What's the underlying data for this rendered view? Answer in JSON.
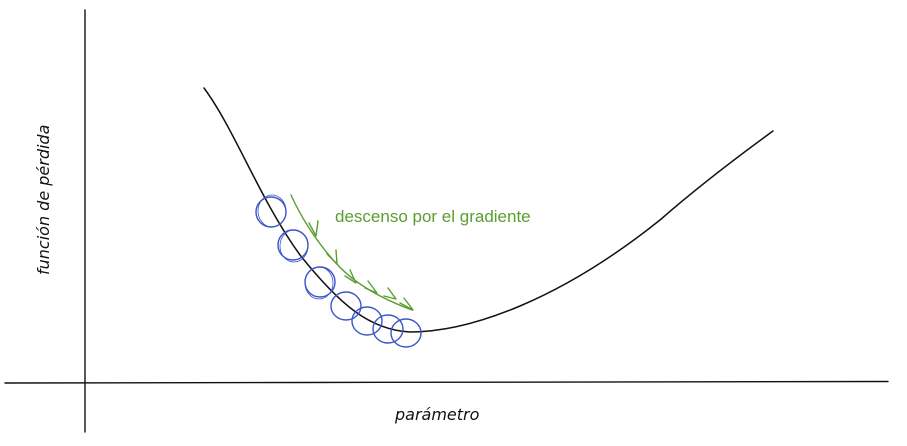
{
  "diagram": {
    "x_axis_label": "parámetro",
    "y_axis_label": "función de pérdida",
    "annotation": "descenso por el gradiente",
    "colors": {
      "axis": "#111111",
      "curve": "#111111",
      "steps": "#3a55c7",
      "annotation": "#5a9e2f"
    },
    "gradient_steps_count": 7
  }
}
